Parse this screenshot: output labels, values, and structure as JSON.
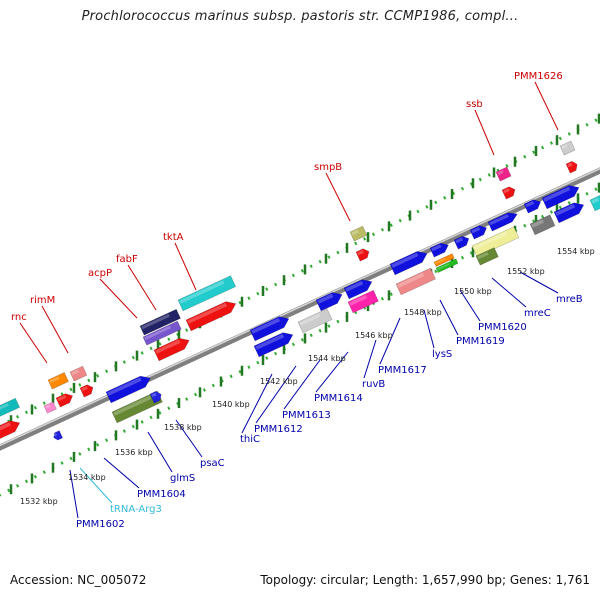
{
  "title": "Prochlorococcus marinus subsp. pastoris str. CCMP1986, compl...",
  "footer": {
    "accession": "Accession: NC_005072",
    "summary": "Topology: circular; Length: 1,657,990 bp; Genes: 1,761"
  },
  "colors": {
    "top_label": "#cc0000",
    "bottom_label": "#0000aa",
    "trna_label": "#33bbdd",
    "backbone": "#8a8a8a",
    "ruler_dots": "#33aa33",
    "tick_marks": "#227722"
  },
  "axis_ticks": [
    "1532 kbp",
    "1534 kbp",
    "1536 kbp",
    "1538 kbp",
    "1540 kbp",
    "1542 kbp",
    "1544 kbp",
    "1546 kbp",
    "1548 kbp",
    "1550 kbp",
    "1552 kbp",
    "1554 kbp"
  ],
  "top_labels": [
    "rnc",
    "rimM",
    "acpP",
    "fabF",
    "tktA",
    "smpB",
    "ssb",
    "PMM1626"
  ],
  "bottom_labels": [
    "PMM1602",
    "tRNA-Arg3",
    "PMM1604",
    "glmS",
    "psaC",
    "thiC",
    "PMM1612",
    "PMM1613",
    "PMM1614",
    "ruvB",
    "PMM1617",
    "lysS",
    "PMM1619",
    "PMM1620",
    "mreC",
    "mreB"
  ]
}
